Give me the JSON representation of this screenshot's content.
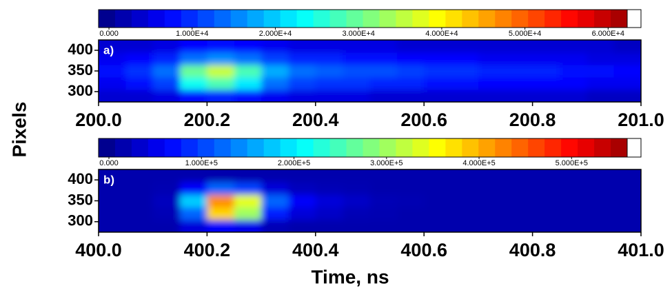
{
  "chart_data": [
    {
      "type": "heatmap",
      "panel_label": "a)",
      "ylabel": "Pixels",
      "colormap": "jet",
      "zlim": [
        -1250,
        63950
      ],
      "colorbar_ticks": [
        {
          "value": 0,
          "label": "0.000"
        },
        {
          "value": 10000,
          "label": "1.000E+4"
        },
        {
          "value": 20000,
          "label": "2.000E+4"
        },
        {
          "value": 30000,
          "label": "3.000E+4"
        },
        {
          "value": 40000,
          "label": "4.000E+4"
        },
        {
          "value": 50000,
          "label": "5.000E+4"
        },
        {
          "value": 60000,
          "label": "6.000E+4"
        }
      ],
      "xlim": [
        200,
        201
      ],
      "xticks": [
        {
          "value": 200,
          "label": "200.0"
        },
        200.2,
        200.4,
        200.6,
        200.8,
        {
          "value": 201,
          "label": "201.0"
        }
      ],
      "ylim": [
        275,
        425
      ],
      "yticks": [
        300,
        350,
        400
      ],
      "x": [
        200.025,
        200.075,
        200.125,
        200.175,
        200.225,
        200.275,
        200.325,
        200.375,
        200.425,
        200.475,
        200.525,
        200.575,
        200.625,
        200.675,
        200.725,
        200.775,
        200.825,
        200.875,
        200.925,
        200.975
      ],
      "y": [
        290,
        320,
        350,
        380,
        410
      ],
      "z": [
        [
          4000,
          4000,
          5000,
          8000,
          9000,
          8000,
          6000,
          5000,
          5000,
          5000,
          4000,
          4000,
          4000,
          4000,
          4000,
          4000,
          4000,
          4000,
          3000,
          3000
        ],
        [
          6000,
          8000,
          11000,
          24000,
          28000,
          22000,
          14000,
          11000,
          10000,
          10000,
          9000,
          9000,
          8000,
          8000,
          7000,
          7000,
          7000,
          7000,
          6000,
          6000
        ],
        [
          8000,
          10000,
          14000,
          30000,
          36000,
          28000,
          18000,
          14000,
          13000,
          12000,
          12000,
          11000,
          10000,
          10000,
          9000,
          9000,
          9000,
          8000,
          8000,
          7000
        ],
        [
          6000,
          7000,
          9000,
          14000,
          16000,
          14000,
          11000,
          9000,
          9000,
          8000,
          8000,
          7000,
          7000,
          7000,
          6000,
          6000,
          6000,
          6000,
          5000,
          5000
        ],
        [
          4000,
          4000,
          5000,
          7000,
          8000,
          7000,
          6000,
          5000,
          5000,
          5000,
          5000,
          4000,
          4000,
          4000,
          4000,
          4000,
          4000,
          4000,
          4000,
          3000
        ]
      ]
    },
    {
      "type": "heatmap",
      "panel_label": "b)",
      "xlabel": "Time, ns",
      "colormap": "jet",
      "zlim": [
        -11200,
        575000
      ],
      "colorbar_ticks": [
        {
          "value": 0,
          "label": "0.000"
        },
        {
          "value": 100000,
          "label": "1.000E+5"
        },
        {
          "value": 200000,
          "label": "2.000E+5"
        },
        {
          "value": 300000,
          "label": "3.000E+5"
        },
        {
          "value": 400000,
          "label": "4.000E+5"
        },
        {
          "value": 500000,
          "label": "5.000E+5"
        }
      ],
      "xlim": [
        400,
        401
      ],
      "xticks": [
        {
          "value": 400,
          "label": "400.0"
        },
        400.2,
        400.4,
        400.6,
        400.8,
        {
          "value": 401,
          "label": "401.0"
        }
      ],
      "ylim": [
        275,
        425
      ],
      "yticks": [
        300,
        350,
        400
      ],
      "x": [
        400.025,
        400.075,
        400.125,
        400.175,
        400.225,
        400.275,
        400.325,
        400.375,
        400.425,
        400.475,
        400.525,
        400.575,
        400.625,
        400.675,
        400.725,
        400.775,
        400.825,
        400.875,
        400.925,
        400.975
      ],
      "y": [
        290,
        320,
        350,
        380,
        410
      ],
      "z": [
        [
          15000,
          15000,
          15000,
          40000,
          60000,
          50000,
          20000,
          15000,
          15000,
          15000,
          15000,
          15000,
          15000,
          15000,
          15000,
          15000,
          15000,
          15000,
          15000,
          15000
        ],
        [
          15000,
          15000,
          20000,
          120000,
          380000,
          300000,
          80000,
          40000,
          30000,
          20000,
          18000,
          15000,
          15000,
          15000,
          15000,
          15000,
          15000,
          15000,
          15000,
          15000
        ],
        [
          15000,
          15000,
          25000,
          180000,
          420000,
          340000,
          120000,
          60000,
          40000,
          30000,
          20000,
          18000,
          15000,
          15000,
          15000,
          15000,
          15000,
          15000,
          15000,
          15000
        ],
        [
          15000,
          15000,
          18000,
          60000,
          120000,
          100000,
          40000,
          25000,
          20000,
          18000,
          15000,
          15000,
          15000,
          15000,
          15000,
          15000,
          15000,
          15000,
          15000,
          15000
        ],
        [
          15000,
          15000,
          15000,
          15000,
          15000,
          15000,
          15000,
          15000,
          15000,
          15000,
          15000,
          15000,
          15000,
          15000,
          15000,
          15000,
          15000,
          15000,
          15000,
          15000
        ]
      ]
    }
  ]
}
